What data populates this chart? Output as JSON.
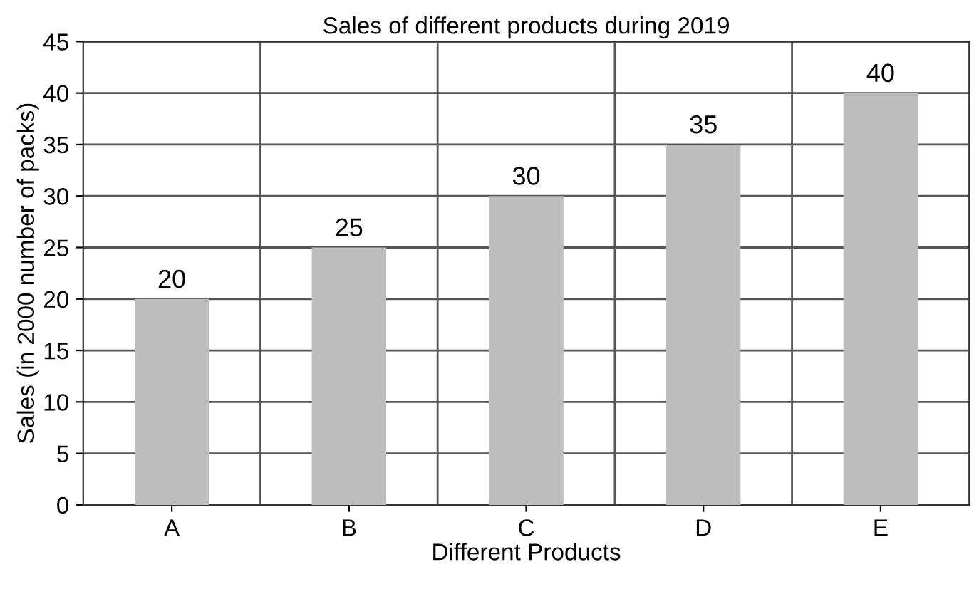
{
  "chart_data": {
    "type": "bar",
    "title": "Sales of different products during 2019",
    "xlabel": "Different Products",
    "ylabel": "Sales (in 2000 number of packs)",
    "categories": [
      "A",
      "B",
      "C",
      "D",
      "E"
    ],
    "values": [
      20,
      25,
      30,
      35,
      40
    ],
    "color": "#bdbdbd",
    "ylim": [
      0,
      45
    ],
    "yticks": [
      0,
      5,
      10,
      15,
      20,
      25,
      30,
      35,
      40,
      45
    ],
    "grid": true,
    "data_labels": true
  }
}
